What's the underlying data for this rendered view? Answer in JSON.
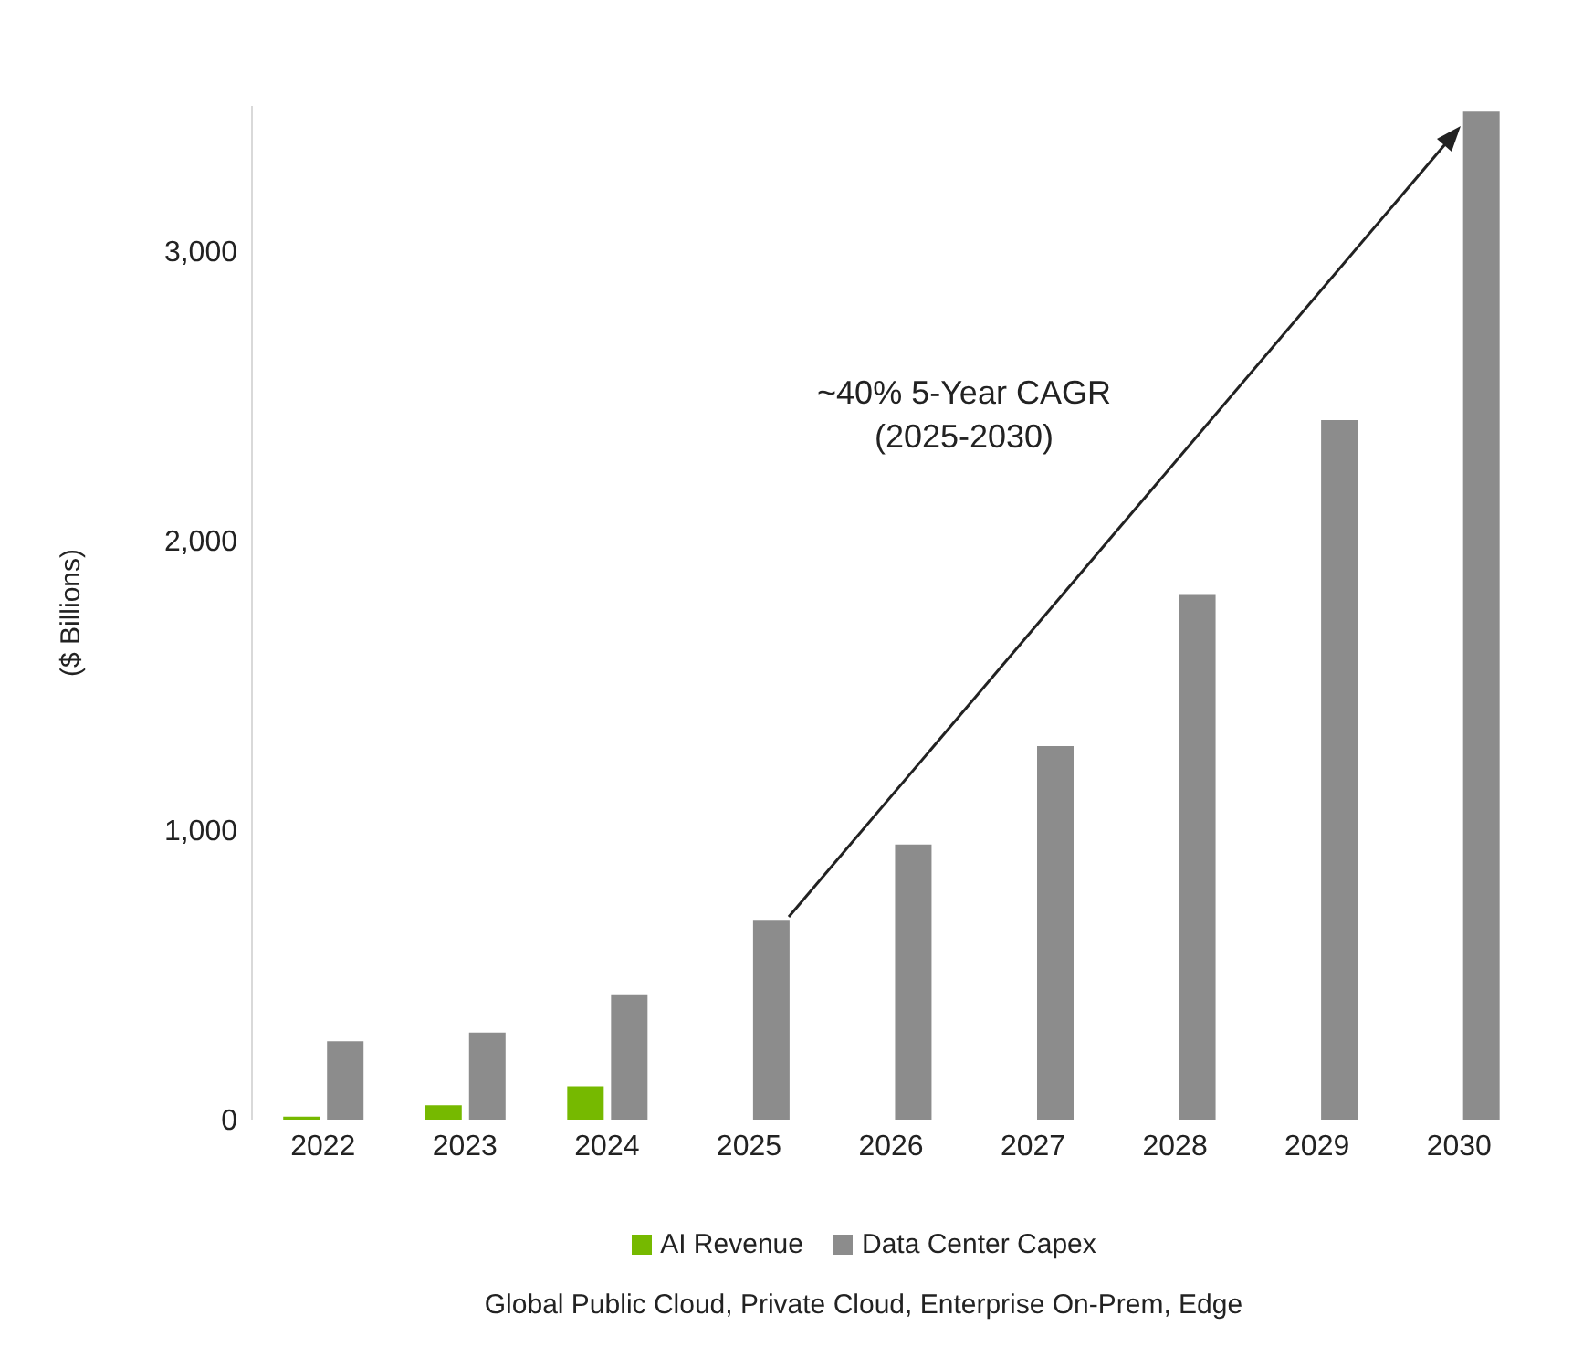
{
  "chart_data": {
    "type": "bar",
    "ylabel": "($ Billions)",
    "categories": [
      "2022",
      "2023",
      "2024",
      "2025",
      "2026",
      "2027",
      "2028",
      "2029",
      "2030"
    ],
    "series": [
      {
        "name": "AI Revenue",
        "color": "#76b900",
        "values": [
          10,
          50,
          115,
          null,
          null,
          null,
          null,
          null,
          null
        ]
      },
      {
        "name": "Data Center Capex",
        "color": "#8c8c8c",
        "values": [
          270,
          300,
          430,
          690,
          950,
          1290,
          1815,
          2415,
          3480
        ]
      }
    ],
    "ylim": [
      0,
      3500
    ],
    "yticks": [
      {
        "value": 0,
        "label": "0"
      },
      {
        "value": 1000,
        "label": "1,000"
      },
      {
        "value": 2000,
        "label": "2,000"
      },
      {
        "value": 3000,
        "label": "3,000"
      }
    ],
    "grid": false,
    "legend": "bottom",
    "annotations": [
      "~40% 5-Year CAGR\n(2025-2030)",
      "Global Public Cloud, Private Cloud, Enterprise On-Prem, Edge"
    ]
  }
}
